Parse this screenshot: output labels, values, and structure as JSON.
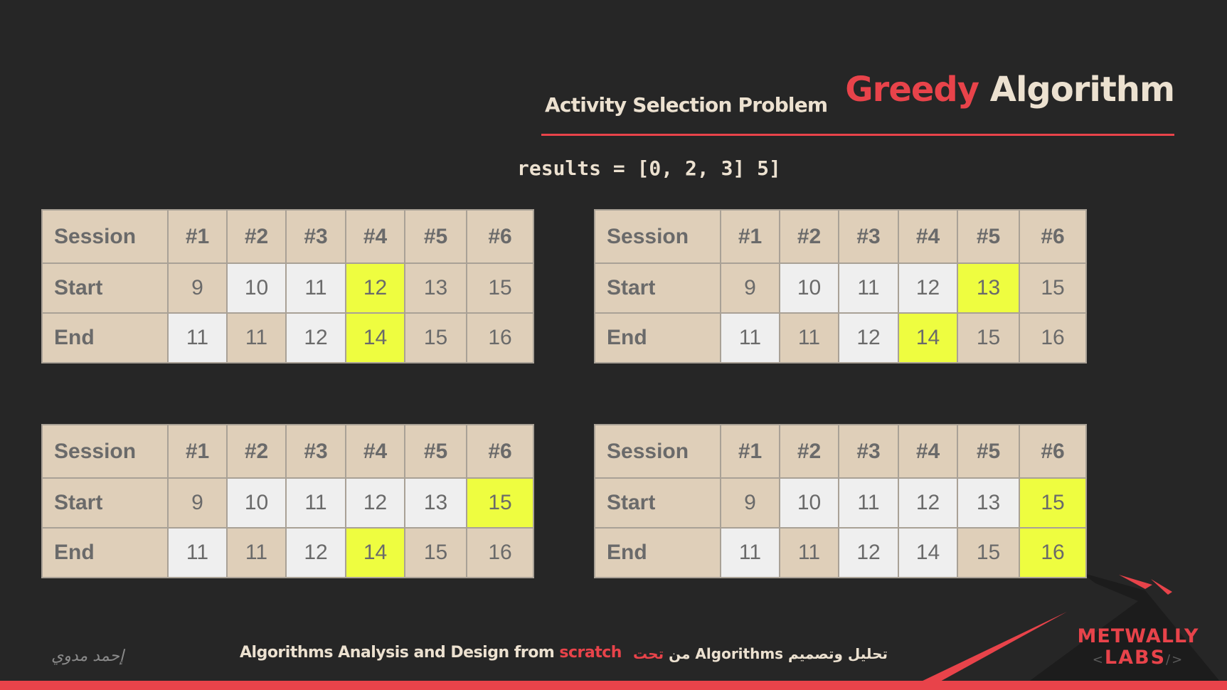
{
  "title": {
    "accent": "Greedy",
    "rest": "Algorithm"
  },
  "subtitle": "Activity Selection Problem",
  "results_text": "results = [0, 2, 3] 5]",
  "tables": [
    {
      "header": [
        "Session",
        "#1",
        "#2",
        "#3",
        "#4",
        "#5",
        "#6"
      ],
      "rows": [
        {
          "label": "Start",
          "values": [
            "9",
            "10",
            "11",
            "12",
            "13",
            "15"
          ],
          "highlight": [
            null,
            "white",
            "white",
            "yellow",
            null,
            null
          ]
        },
        {
          "label": "End",
          "values": [
            "11",
            "11",
            "12",
            "14",
            "15",
            "16"
          ],
          "highlight": [
            "white",
            null,
            "white",
            "yellow",
            null,
            null
          ]
        }
      ]
    },
    {
      "header": [
        "Session",
        "#1",
        "#2",
        "#3",
        "#4",
        "#5",
        "#6"
      ],
      "rows": [
        {
          "label": "Start",
          "values": [
            "9",
            "10",
            "11",
            "12",
            "13",
            "15"
          ],
          "highlight": [
            null,
            "white",
            "white",
            "white",
            "yellow",
            null
          ]
        },
        {
          "label": "End",
          "values": [
            "11",
            "11",
            "12",
            "14",
            "15",
            "16"
          ],
          "highlight": [
            "white",
            null,
            "white",
            "yellow",
            null,
            null
          ]
        }
      ]
    },
    {
      "header": [
        "Session",
        "#1",
        "#2",
        "#3",
        "#4",
        "#5",
        "#6"
      ],
      "rows": [
        {
          "label": "Start",
          "values": [
            "9",
            "10",
            "11",
            "12",
            "13",
            "15"
          ],
          "highlight": [
            null,
            "white",
            "white",
            "white",
            "white",
            "yellow"
          ]
        },
        {
          "label": "End",
          "values": [
            "11",
            "11",
            "12",
            "14",
            "15",
            "16"
          ],
          "highlight": [
            "white",
            null,
            "white",
            "yellow",
            null,
            null
          ]
        }
      ]
    },
    {
      "header": [
        "Session",
        "#1",
        "#2",
        "#3",
        "#4",
        "#5",
        "#6"
      ],
      "rows": [
        {
          "label": "Start",
          "values": [
            "9",
            "10",
            "11",
            "12",
            "13",
            "15"
          ],
          "highlight": [
            null,
            "white",
            "white",
            "white",
            "white",
            "yellow"
          ]
        },
        {
          "label": "End",
          "values": [
            "11",
            "11",
            "12",
            "14",
            "15",
            "16"
          ],
          "highlight": [
            "white",
            null,
            "white",
            "white",
            null,
            "yellow"
          ]
        }
      ]
    }
  ],
  "footer": {
    "en_text": "Algorithms Analysis and Design from ",
    "en_accent": "scratch",
    "ar_text": "تحليل وتصميم Algorithms من ",
    "ar_accent": "تحت",
    "signature": "إحمد مدوي"
  },
  "logo": {
    "line1": "METWALLY",
    "line2": "LABS"
  },
  "colors": {
    "accent": "#e8434a",
    "cell_beige": "#dfcfb9",
    "cell_white": "#efefef",
    "cell_yellow": "#eefd40",
    "background": "#262626"
  }
}
